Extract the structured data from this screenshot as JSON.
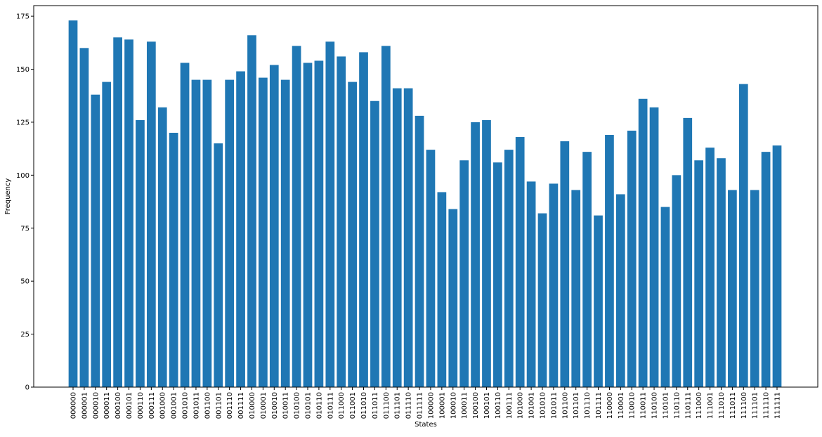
{
  "chart_data": {
    "type": "bar",
    "title": "",
    "xlabel": "States",
    "ylabel": "Frequency",
    "ylim": [
      0,
      180
    ],
    "yticks": [
      0,
      25,
      50,
      75,
      100,
      125,
      150,
      175
    ],
    "bar_color": "#1f77b4",
    "grid": false,
    "legend": "none",
    "categories": [
      "000000",
      "000001",
      "000010",
      "000011",
      "000100",
      "000101",
      "000110",
      "000111",
      "001000",
      "001001",
      "001010",
      "001011",
      "001100",
      "001101",
      "001110",
      "001111",
      "010000",
      "010001",
      "010010",
      "010011",
      "010100",
      "010101",
      "010110",
      "010111",
      "011000",
      "011001",
      "011010",
      "011011",
      "011100",
      "011101",
      "011110",
      "011111",
      "100000",
      "100001",
      "100010",
      "100011",
      "100100",
      "100101",
      "100110",
      "100111",
      "101000",
      "101001",
      "101010",
      "101011",
      "101100",
      "101101",
      "101110",
      "101111",
      "110000",
      "110001",
      "110010",
      "110011",
      "110100",
      "110101",
      "110110",
      "110111",
      "111000",
      "111001",
      "111010",
      "111011",
      "111100",
      "111101",
      "111110",
      "111111"
    ],
    "values": [
      173,
      160,
      138,
      144,
      165,
      164,
      126,
      163,
      132,
      120,
      153,
      145,
      145,
      115,
      145,
      149,
      166,
      146,
      152,
      145,
      161,
      153,
      154,
      163,
      156,
      144,
      158,
      135,
      161,
      141,
      141,
      128,
      112,
      92,
      84,
      107,
      125,
      126,
      106,
      112,
      118,
      97,
      82,
      96,
      116,
      93,
      111,
      81,
      119,
      91,
      121,
      136,
      132,
      85,
      100,
      127,
      107,
      113,
      108,
      93,
      143,
      93,
      111,
      114
    ]
  }
}
